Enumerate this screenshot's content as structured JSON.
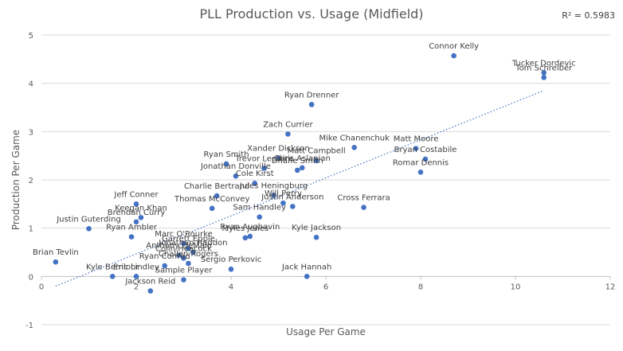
{
  "chart_data": {
    "type": "scatter",
    "title": "PLL Production vs. Usage (Midfield)",
    "xlabel": "Usage Per Game",
    "ylabel": "Production Per Game",
    "xlim": [
      0,
      12
    ],
    "ylim": [
      -1,
      5
    ],
    "xticks": [
      "0",
      "2",
      "4",
      "6",
      "8",
      "10",
      "12"
    ],
    "yticks": [
      "-1",
      "0",
      "1",
      "2",
      "3",
      "4",
      "5"
    ],
    "grid": "horizontal",
    "legend": "none",
    "r_squared": "R² = 0.5983",
    "trendline": {
      "style": "dotted",
      "x": [
        0.3,
        10.6
      ],
      "y": [
        -0.2,
        3.85
      ]
    },
    "marker_color": "#4472C4",
    "points": [
      {
        "label": "Connor Kelly",
        "x": 8.7,
        "y": 4.57
      },
      {
        "label": "Tucker Dordevic",
        "x": 10.6,
        "y": 4.22
      },
      {
        "label": "Tom Schreiber",
        "x": 10.6,
        "y": 4.12
      },
      {
        "label": "Ryan Drenner",
        "x": 5.7,
        "y": 3.56
      },
      {
        "label": "Zach Currier",
        "x": 5.2,
        "y": 2.95
      },
      {
        "label": "Mike Chanenchuk",
        "x": 6.6,
        "y": 2.67
      },
      {
        "label": "Matt Moore",
        "x": 7.9,
        "y": 2.65
      },
      {
        "label": "Bryan Costabile",
        "x": 8.1,
        "y": 2.43
      },
      {
        "label": "Romar Dennis",
        "x": 8.0,
        "y": 2.16
      },
      {
        "label": "Matt Campbell",
        "x": 5.8,
        "y": 2.4
      },
      {
        "label": "Chris Aslanian",
        "x": 5.5,
        "y": 2.25
      },
      {
        "label": "Xander Dickson",
        "x": 5.0,
        "y": 2.45
      },
      {
        "label": "Ryan Smith",
        "x": 3.9,
        "y": 2.33
      },
      {
        "label": "Trevor Leclaire",
        "x": 4.7,
        "y": 2.24
      },
      {
        "label": "Jonathan Donville",
        "x": 4.1,
        "y": 2.08
      },
      {
        "label": "Dhane Smith",
        "x": 5.4,
        "y": 2.2
      },
      {
        "label": "Charlie Bertrand",
        "x": 3.7,
        "y": 1.67
      },
      {
        "label": "Cole Kirst",
        "x": 4.5,
        "y": 1.93
      },
      {
        "label": "Jules Heningburg",
        "x": 4.9,
        "y": 1.68
      },
      {
        "label": "Justin Anderson",
        "x": 5.3,
        "y": 1.45
      },
      {
        "label": "Cross Ferrara",
        "x": 6.8,
        "y": 1.43
      },
      {
        "label": "Thomas McConvey",
        "x": 3.6,
        "y": 1.41
      },
      {
        "label": "Will Perry",
        "x": 5.1,
        "y": 1.52
      },
      {
        "label": "Sam Handley",
        "x": 4.6,
        "y": 1.23
      },
      {
        "label": "Jeff Conner",
        "x": 2.0,
        "y": 1.5
      },
      {
        "label": "Keegan Khan",
        "x": 2.1,
        "y": 1.22
      },
      {
        "label": "Brendan Curry",
        "x": 2.0,
        "y": 1.13
      },
      {
        "label": "Justin Guterding",
        "x": 1.0,
        "y": 0.99
      },
      {
        "label": "Ryan Ambler",
        "x": 1.9,
        "y": 0.82
      },
      {
        "label": "Kyle Jackson",
        "x": 5.8,
        "y": 0.81
      },
      {
        "label": "Ryan Aughavin",
        "x": 4.4,
        "y": 0.83
      },
      {
        "label": "Myles Jones",
        "x": 4.3,
        "y": 0.8
      },
      {
        "label": "Marc O'Rourke",
        "x": 3.0,
        "y": 0.68
      },
      {
        "label": "Jonathan Haddon",
        "x": 3.2,
        "y": 0.5
      },
      {
        "label": "Garrett Epple",
        "x": 3.1,
        "y": 0.58
      },
      {
        "label": "Anthony DeMaio",
        "x": 2.9,
        "y": 0.44
      },
      {
        "label": "Colin Heacock",
        "x": 3.0,
        "y": 0.38
      },
      {
        "label": "Challen Rogers",
        "x": 3.1,
        "y": 0.27
      },
      {
        "label": "Sergio Perkovic",
        "x": 4.0,
        "y": 0.15
      },
      {
        "label": "Brian Tevlin",
        "x": 0.3,
        "y": 0.3
      },
      {
        "label": "Kyle Bernlohr",
        "x": 1.5,
        "y": 0.0
      },
      {
        "label": "Eric Lindley",
        "x": 2.0,
        "y": 0.0
      },
      {
        "label": "Ryan Conrad",
        "x": 2.6,
        "y": 0.22
      },
      {
        "label": "Jack Hannah",
        "x": 5.6,
        "y": 0.0
      },
      {
        "label": "Jackson Reid",
        "x": 2.3,
        "y": -0.3
      },
      {
        "label": "Sample Player",
        "x": 3.0,
        "y": -0.07
      }
    ]
  }
}
